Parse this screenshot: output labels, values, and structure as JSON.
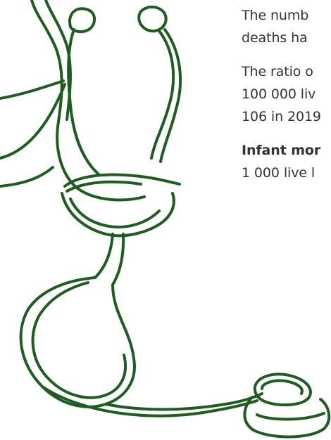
{
  "paragraphs": [
    {
      "lines": [
        "The numb",
        "deaths ha"
      ]
    },
    {
      "lines": [
        "The ratio o",
        "100 000 liv",
        "106 in 2019"
      ]
    },
    {
      "bold": "Infant mor",
      "lines": [
        "1 000 live l"
      ]
    }
  ],
  "colors": {
    "stethoscope": "#1d5e20",
    "text": "#333333"
  },
  "icon": "stethoscope-illustration"
}
